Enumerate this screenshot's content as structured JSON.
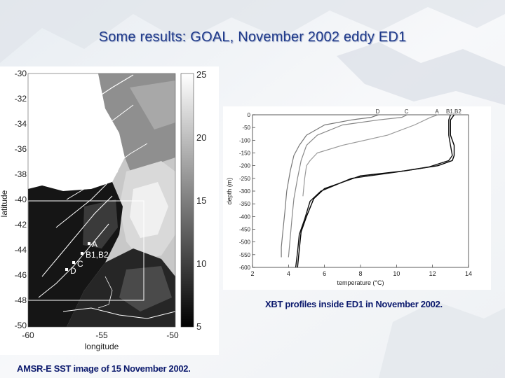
{
  "slide": {
    "title": "Some results: GOAL, November 2002 eddy ED1",
    "caption_xbt": "XBT profiles inside ED1 in November 2002.",
    "caption_amsr": "AMSR-E SST image of 15 November 2002."
  },
  "map": {
    "ylabel": "latitude",
    "xlabel": "longitude",
    "lat_ticks": [
      "-30",
      "-32",
      "-34",
      "-36",
      "-38",
      "-40",
      "-42",
      "-44",
      "-46",
      "-48",
      "-50"
    ],
    "lon_ticks": [
      "-60",
      "-55",
      "-50"
    ],
    "colorbar_ticks": [
      "25",
      "20",
      "15",
      "10",
      "5"
    ],
    "stations": [
      {
        "label": "A"
      },
      {
        "label": "B1,B2"
      },
      {
        "label": "C"
      },
      {
        "label": "D"
      }
    ]
  },
  "chart_data": {
    "type": "line",
    "xlabel": "temperature (°C)",
    "ylabel": "depth (m)",
    "xlim": [
      2,
      14
    ],
    "ylim": [
      -600,
      0
    ],
    "x_ticks": [
      "2",
      "4",
      "6",
      "8",
      "10",
      "12",
      "14"
    ],
    "y_ticks": [
      "0",
      "-50",
      "-100",
      "-150",
      "-200",
      "-250",
      "-300",
      "-350",
      "-400",
      "-450",
      "-500",
      "-550",
      "-600"
    ],
    "series": [
      {
        "name": "D",
        "x": [
          9.0,
          8.6,
          7.5,
          6.0,
          5.0,
          4.6,
          4.3,
          4.1,
          3.9,
          3.8,
          3.7,
          3.6,
          3.6
        ],
        "y": [
          0,
          -10,
          -20,
          -40,
          -80,
          -120,
          -160,
          -220,
          -300,
          -380,
          -450,
          -520,
          -560
        ]
      },
      {
        "name": "C",
        "x": [
          10.6,
          10.3,
          9.0,
          7.0,
          5.6,
          5.0,
          4.7,
          4.5,
          4.3,
          4.2,
          4.1,
          4.0
        ],
        "y": [
          0,
          -10,
          -20,
          -40,
          -80,
          -120,
          -180,
          -250,
          -330,
          -400,
          -480,
          -560
        ]
      },
      {
        "name": "A",
        "x": [
          12.3,
          11.9,
          11.0,
          9.5,
          7.0,
          5.6,
          5.2,
          5.0,
          4.9,
          4.8
        ],
        "y": [
          0,
          -10,
          -40,
          -80,
          -120,
          -150,
          -180,
          -200,
          -250,
          -320
        ]
      },
      {
        "name": "B1",
        "x": [
          13.2,
          13.0,
          13.0,
          13.2,
          13.2,
          13.1,
          12.3,
          10.5,
          8.0,
          6.0,
          5.4,
          5.0,
          4.7,
          4.6,
          4.5
        ],
        "y": [
          0,
          -20,
          -80,
          -120,
          -160,
          -180,
          -200,
          -220,
          -240,
          -290,
          -330,
          -400,
          -460,
          -530,
          -600
        ]
      },
      {
        "name": "B2",
        "x": [
          13.0,
          12.9,
          12.9,
          13.0,
          13.1,
          12.9,
          11.8,
          10.0,
          7.5,
          5.8,
          5.2,
          4.9,
          4.6,
          4.5,
          4.4
        ],
        "y": [
          0,
          -20,
          -80,
          -120,
          -160,
          -180,
          -205,
          -225,
          -250,
          -300,
          -340,
          -410,
          -470,
          -540,
          -600
        ]
      }
    ],
    "legend": [
      "D",
      "C",
      "A",
      "B1,B2"
    ]
  }
}
